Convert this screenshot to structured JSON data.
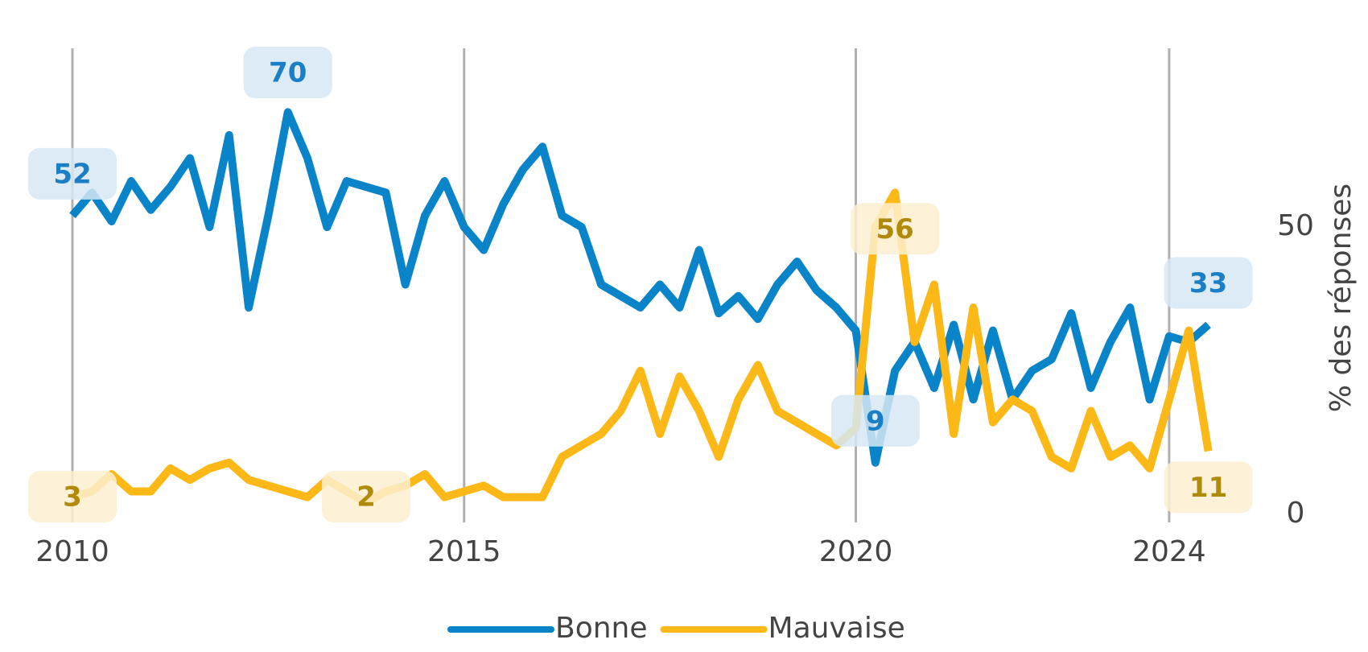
{
  "chart_data": {
    "type": "line",
    "y_axis_label": "% des réponses",
    "x": [
      2010.0,
      2010.25,
      2010.5,
      2010.75,
      2011.0,
      2011.25,
      2011.5,
      2011.75,
      2012.0,
      2012.25,
      2012.5,
      2012.75,
      2013.0,
      2013.25,
      2013.5,
      2013.75,
      2014.0,
      2014.25,
      2014.5,
      2014.75,
      2015.0,
      2015.25,
      2015.5,
      2015.75,
      2016.0,
      2016.25,
      2016.5,
      2016.75,
      2017.0,
      2017.25,
      2017.5,
      2017.75,
      2018.0,
      2018.25,
      2018.5,
      2018.75,
      2019.0,
      2019.25,
      2019.5,
      2019.75,
      2020.0,
      2020.25,
      2020.5,
      2020.75,
      2021.0,
      2021.25,
      2021.5,
      2021.75,
      2022.0,
      2022.25,
      2022.5,
      2022.75,
      2023.0,
      2023.25,
      2023.5,
      2023.75,
      2024.0,
      2024.25,
      2024.5
    ],
    "series": [
      {
        "name": "Bonne",
        "color": "#0a84c8",
        "label_color": "#1a7fc4",
        "label_bg": "#d6e8f5",
        "values": [
          52,
          56,
          51,
          58,
          53,
          57,
          62,
          50,
          66,
          36,
          52,
          70,
          62,
          50,
          58,
          57,
          56,
          40,
          52,
          58,
          50,
          46,
          54,
          60,
          64,
          52,
          50,
          40,
          38,
          36,
          40,
          36,
          46,
          35,
          38,
          34,
          40,
          44,
          39,
          36,
          32,
          9,
          25,
          30,
          22,
          33,
          20,
          32,
          20,
          25,
          27,
          35,
          22,
          30,
          36,
          20,
          31,
          30,
          33
        ]
      },
      {
        "name": "Mauvaise",
        "color": "#fbb817",
        "label_color": "#b08a0c",
        "label_bg": "#fdf0d0",
        "values": [
          3,
          4,
          7,
          4,
          4,
          8,
          6,
          8,
          9,
          6,
          5,
          4,
          3,
          6,
          4,
          2,
          4,
          5,
          7,
          3,
          4,
          5,
          3,
          3,
          3,
          10,
          12,
          14,
          18,
          25,
          14,
          24,
          18,
          10,
          20,
          26,
          18,
          16,
          14,
          12,
          15,
          50,
          56,
          30,
          40,
          14,
          36,
          16,
          20,
          18,
          10,
          8,
          18,
          10,
          12,
          8,
          20,
          32,
          11
        ]
      }
    ],
    "xlim": [
      2010,
      2025.1
    ],
    "xticks": [
      2010,
      2015,
      2020,
      2024
    ],
    "ylim": [
      0,
      80
    ],
    "yticks": [
      0,
      50
    ],
    "y_axis_side": "right",
    "grid": "x"
  }
}
